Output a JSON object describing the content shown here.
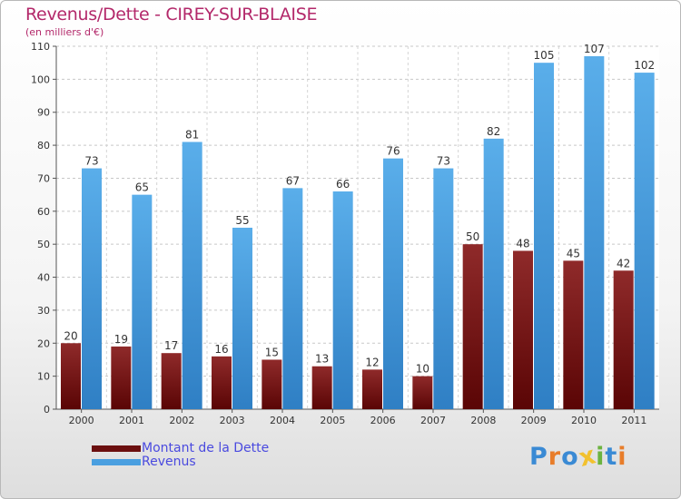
{
  "title": "Revenus/Dette - CIREY-SUR-BLAISE",
  "subtitle": "(en milliers d'€)",
  "chart_data": {
    "type": "bar",
    "categories": [
      "2000",
      "2001",
      "2002",
      "2003",
      "2004",
      "2005",
      "2006",
      "2007",
      "2008",
      "2009",
      "2010",
      "2011"
    ],
    "series": [
      {
        "name": "Montant de la Dette",
        "color": "#7a1414",
        "values": [
          20,
          19,
          17,
          16,
          15,
          13,
          12,
          10,
          50,
          48,
          45,
          42
        ]
      },
      {
        "name": "Revenus",
        "color": "#4a9fe0",
        "values": [
          73,
          65,
          81,
          55,
          67,
          66,
          76,
          73,
          82,
          105,
          107,
          102
        ]
      }
    ],
    "yticks": [
      0,
      10,
      20,
      30,
      40,
      50,
      60,
      70,
      80,
      90,
      100,
      110
    ],
    "ylim": [
      0,
      110
    ],
    "grid": true,
    "legend": "bottom-left"
  },
  "legend": {
    "items": [
      {
        "label": "Montant de la Dette",
        "color": "#6b0f0f"
      },
      {
        "label": "Revenus",
        "color": "#4a9fe0"
      }
    ]
  },
  "logo": {
    "letters": [
      {
        "ch": "P",
        "color": "#3a8ad4"
      },
      {
        "ch": "r",
        "color": "#e87d2a"
      },
      {
        "ch": "o",
        "color": "#3a8ad4"
      },
      {
        "ch": "x",
        "color": "#f2c12e"
      },
      {
        "ch": "i",
        "color": "#6cb33f"
      },
      {
        "ch": "t",
        "color": "#3a8ad4"
      },
      {
        "ch": "i",
        "color": "#e87d2a"
      }
    ]
  }
}
